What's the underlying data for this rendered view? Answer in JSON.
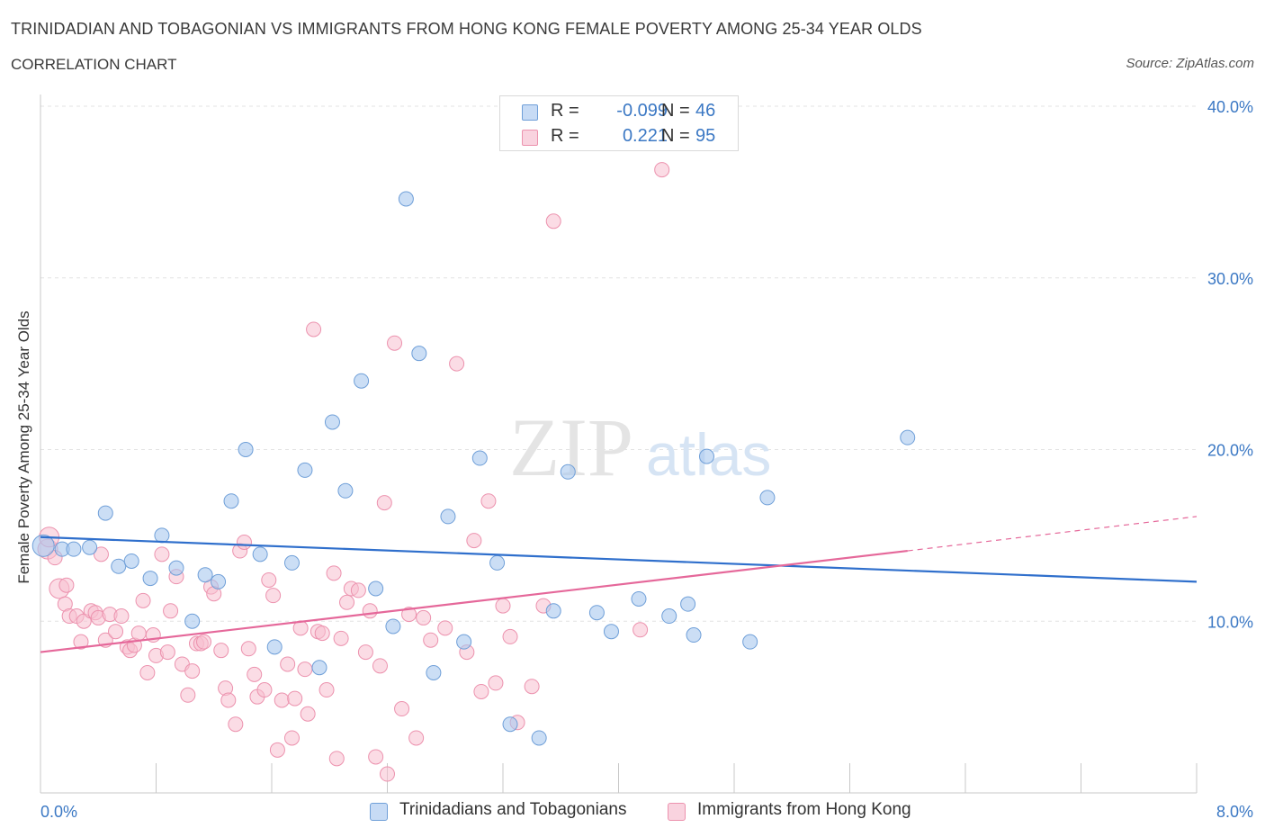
{
  "header": {
    "title": "TRINIDADIAN AND TOBAGONIAN VS IMMIGRANTS FROM HONG KONG FEMALE POVERTY AMONG 25-34 YEAR OLDS",
    "subtitle": "CORRELATION CHART",
    "source": "Source: ZipAtlas.com"
  },
  "watermark": {
    "zip": "ZIP",
    "atlas": "atlas"
  },
  "stats": {
    "rows": [
      {
        "r_label": "R =",
        "r_value": "-0.099",
        "n_label": "N =",
        "n_value": "46"
      },
      {
        "r_label": "R =",
        "r_value": "0.221",
        "n_label": "N =",
        "n_value": "95"
      }
    ]
  },
  "legend": {
    "items": [
      {
        "label": "Trinidadians and Tobagonians"
      },
      {
        "label": "Immigrants from Hong Kong"
      }
    ]
  },
  "colors": {
    "blue_fill": "#a9c8ef",
    "blue_stroke": "#6f9fd8",
    "blue_line": "#2f6fcc",
    "pink_fill": "#f7bfd0",
    "pink_stroke": "#ec92ae",
    "pink_line": "#e5689a",
    "axis_text": "#3b78c4",
    "grid": "#e3e3e3"
  },
  "chart_data": {
    "type": "scatter",
    "title": "TRINIDADIAN AND TOBAGONIAN VS IMMIGRANTS FROM HONG KONG FEMALE POVERTY AMONG 25-34 YEAR OLDS",
    "xlabel": "",
    "ylabel": "Female Poverty Among 25-34 Year Olds",
    "xlim": [
      0,
      8
    ],
    "ylim": [
      0,
      40
    ],
    "x_tick_labels": [
      "0.0%",
      "8.0%"
    ],
    "y_ticks": [
      10,
      20,
      30,
      40
    ],
    "y_tick_labels": [
      "10.0%",
      "20.0%",
      "30.0%",
      "40.0%"
    ],
    "grid": true,
    "legend_position": "bottom",
    "series": [
      {
        "name": "Trinidadians and Tobagonians",
        "color": "#6f9fd8",
        "trend": {
          "x": [
            0,
            8
          ],
          "y": [
            14.9,
            12.3
          ]
        },
        "points": [
          [
            0.02,
            14.4
          ],
          [
            0.15,
            14.2
          ],
          [
            0.23,
            14.2
          ],
          [
            0.34,
            14.3
          ],
          [
            0.45,
            16.3
          ],
          [
            0.54,
            13.2
          ],
          [
            0.63,
            13.5
          ],
          [
            0.76,
            12.5
          ],
          [
            0.84,
            15.0
          ],
          [
            0.94,
            13.1
          ],
          [
            1.05,
            10.0
          ],
          [
            1.14,
            12.7
          ],
          [
            1.23,
            12.3
          ],
          [
            1.32,
            17.0
          ],
          [
            1.42,
            20.0
          ],
          [
            1.52,
            13.9
          ],
          [
            1.62,
            8.5
          ],
          [
            1.74,
            13.4
          ],
          [
            1.83,
            18.8
          ],
          [
            1.93,
            7.3
          ],
          [
            2.02,
            21.6
          ],
          [
            2.11,
            17.6
          ],
          [
            2.22,
            24.0
          ],
          [
            2.32,
            11.9
          ],
          [
            2.44,
            9.7
          ],
          [
            2.53,
            34.6
          ],
          [
            2.62,
            25.6
          ],
          [
            2.72,
            7.0
          ],
          [
            2.82,
            16.1
          ],
          [
            2.93,
            8.8
          ],
          [
            3.04,
            19.5
          ],
          [
            3.16,
            13.4
          ],
          [
            3.25,
            4.0
          ],
          [
            3.45,
            3.2
          ],
          [
            3.55,
            10.6
          ],
          [
            3.65,
            18.7
          ],
          [
            3.85,
            10.5
          ],
          [
            3.95,
            9.4
          ],
          [
            4.14,
            11.3
          ],
          [
            4.35,
            10.3
          ],
          [
            4.48,
            11.0
          ],
          [
            4.52,
            9.2
          ],
          [
            4.61,
            19.6
          ],
          [
            4.91,
            8.8
          ],
          [
            5.03,
            17.2
          ],
          [
            6.0,
            20.7
          ]
        ]
      },
      {
        "name": "Immigrants from Hong Kong",
        "color": "#ec92ae",
        "trend": {
          "x": [
            0,
            6.0
          ],
          "y": [
            8.2,
            14.1
          ]
        },
        "trend_extended": {
          "x": [
            6.0,
            8.0
          ],
          "y": [
            14.1,
            16.1
          ]
        },
        "points": [
          [
            0.05,
            14.2
          ],
          [
            0.1,
            13.7
          ],
          [
            0.13,
            11.9
          ],
          [
            0.17,
            11.0
          ],
          [
            0.2,
            10.3
          ],
          [
            0.25,
            10.3
          ],
          [
            0.3,
            10.0
          ],
          [
            0.28,
            8.8
          ],
          [
            0.35,
            10.6
          ],
          [
            0.38,
            10.5
          ],
          [
            0.4,
            10.2
          ],
          [
            0.42,
            13.9
          ],
          [
            0.45,
            8.9
          ],
          [
            0.48,
            10.4
          ],
          [
            0.52,
            9.4
          ],
          [
            0.56,
            10.3
          ],
          [
            0.6,
            8.5
          ],
          [
            0.62,
            8.3
          ],
          [
            0.65,
            8.6
          ],
          [
            0.68,
            9.3
          ],
          [
            0.71,
            11.2
          ],
          [
            0.74,
            7.0
          ],
          [
            0.78,
            9.2
          ],
          [
            0.8,
            8.0
          ],
          [
            0.84,
            13.9
          ],
          [
            0.88,
            8.2
          ],
          [
            0.9,
            10.6
          ],
          [
            0.94,
            12.6
          ],
          [
            0.98,
            7.5
          ],
          [
            1.02,
            5.7
          ],
          [
            1.05,
            7.1
          ],
          [
            1.08,
            8.7
          ],
          [
            1.11,
            8.7
          ],
          [
            1.13,
            8.8
          ],
          [
            1.18,
            12.0
          ],
          [
            1.2,
            11.6
          ],
          [
            1.25,
            8.3
          ],
          [
            1.28,
            6.1
          ],
          [
            1.3,
            5.4
          ],
          [
            1.35,
            4.0
          ],
          [
            1.38,
            14.1
          ],
          [
            1.41,
            14.6
          ],
          [
            1.44,
            8.4
          ],
          [
            1.48,
            6.9
          ],
          [
            1.5,
            5.6
          ],
          [
            1.55,
            6.0
          ],
          [
            1.58,
            12.4
          ],
          [
            1.61,
            11.5
          ],
          [
            1.64,
            2.5
          ],
          [
            1.67,
            5.4
          ],
          [
            1.71,
            7.5
          ],
          [
            1.74,
            3.2
          ],
          [
            1.76,
            5.5
          ],
          [
            1.8,
            9.6
          ],
          [
            1.83,
            7.2
          ],
          [
            1.85,
            4.6
          ],
          [
            1.89,
            27.0
          ],
          [
            1.92,
            9.4
          ],
          [
            1.95,
            9.3
          ],
          [
            1.98,
            6.0
          ],
          [
            2.03,
            12.8
          ],
          [
            2.05,
            2.0
          ],
          [
            2.08,
            9.0
          ],
          [
            2.12,
            11.1
          ],
          [
            2.15,
            11.9
          ],
          [
            2.2,
            11.8
          ],
          [
            2.25,
            8.2
          ],
          [
            2.28,
            10.6
          ],
          [
            2.32,
            2.1
          ],
          [
            2.35,
            7.4
          ],
          [
            2.38,
            16.9
          ],
          [
            2.4,
            1.1
          ],
          [
            2.45,
            26.2
          ],
          [
            2.5,
            4.9
          ],
          [
            2.55,
            10.4
          ],
          [
            2.6,
            3.2
          ],
          [
            2.65,
            10.2
          ],
          [
            2.7,
            8.9
          ],
          [
            2.8,
            9.6
          ],
          [
            2.88,
            25.0
          ],
          [
            2.95,
            8.2
          ],
          [
            3.0,
            14.7
          ],
          [
            3.05,
            5.9
          ],
          [
            3.1,
            17.0
          ],
          [
            3.15,
            6.4
          ],
          [
            3.2,
            10.9
          ],
          [
            3.25,
            9.1
          ],
          [
            3.3,
            4.1
          ],
          [
            3.4,
            6.2
          ],
          [
            3.48,
            10.9
          ],
          [
            3.55,
            33.3
          ],
          [
            4.15,
            9.5
          ],
          [
            4.3,
            36.3
          ],
          [
            0.06,
            14.9
          ],
          [
            0.18,
            12.1
          ]
        ]
      }
    ]
  }
}
